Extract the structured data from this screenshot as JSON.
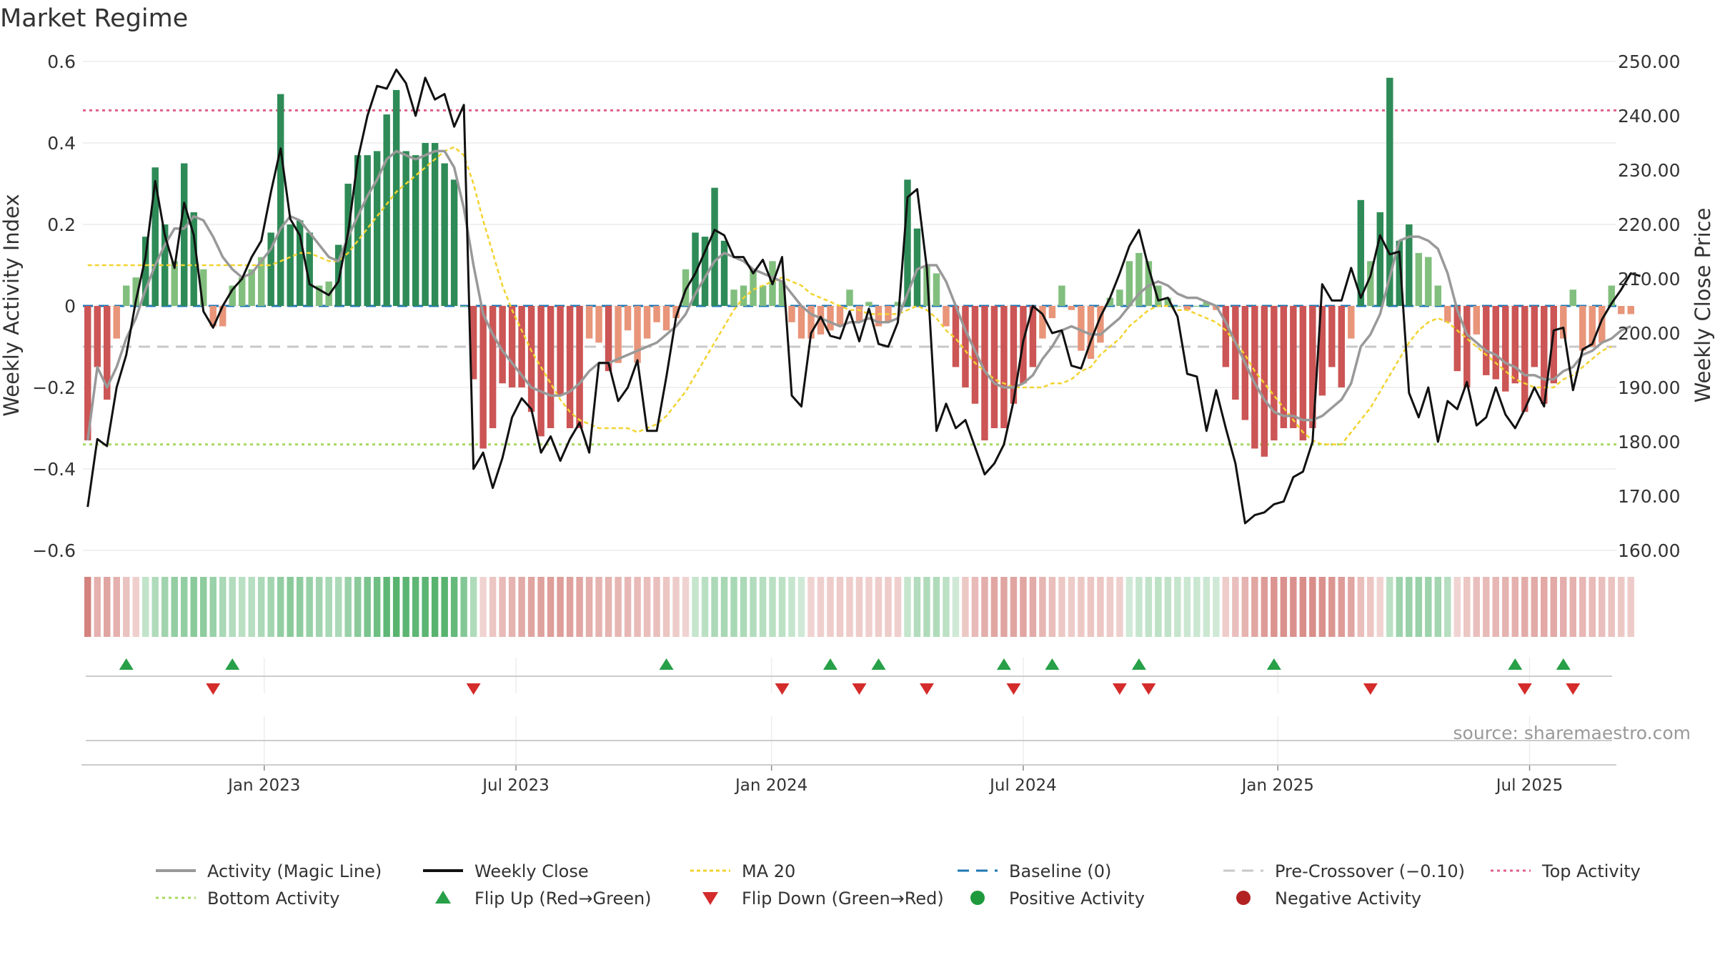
{
  "chart_data": {
    "type": "bar",
    "title": "Market Regime",
    "ylabel_left": "Weekly Activity Index",
    "ylabel_right": "Weekly Close Price",
    "ylim_left": [
      -0.6,
      0.6
    ],
    "ylim_right": [
      160,
      250
    ],
    "y_ticks_left": [
      -0.6,
      -0.4,
      -0.2,
      0,
      0.2,
      0.4,
      0.6
    ],
    "y_tick_labels_left": [
      "−0.6",
      "−0.4",
      "−0.2",
      "0",
      "0.2",
      "0.4",
      "0.6"
    ],
    "y_ticks_right": [
      160,
      170,
      180,
      190,
      200,
      210,
      220,
      230,
      240,
      250
    ],
    "y_tick_labels_right": [
      "160.00",
      "170.00",
      "180.00",
      "190.00",
      "200.00",
      "210.00",
      "220.00",
      "230.00",
      "240.00",
      "250.00"
    ],
    "x_ticks": [
      18.3,
      44.4,
      70.9,
      97.0,
      123.4,
      149.5
    ],
    "x_tick_labels": [
      "Jan 2023",
      "Jul 2023",
      "Jan 2024",
      "Jul 2024",
      "Jan 2025",
      "Jul 2025"
    ],
    "weeks": 159,
    "activity": [
      -0.33,
      -0.15,
      -0.23,
      -0.08,
      0.05,
      0.07,
      0.17,
      0.34,
      0.2,
      0.11,
      0.35,
      0.23,
      0.09,
      -0.05,
      -0.05,
      0.05,
      0.07,
      0.09,
      0.12,
      0.18,
      0.52,
      0.2,
      0.21,
      0.18,
      0.05,
      0.06,
      0.15,
      0.3,
      0.37,
      0.37,
      0.38,
      0.47,
      0.53,
      0.38,
      0.37,
      0.4,
      0.4,
      0.35,
      0.31,
      0.0,
      -0.18,
      -0.35,
      -0.3,
      -0.19,
      -0.2,
      -0.2,
      -0.26,
      -0.32,
      -0.3,
      -0.22,
      -0.3,
      -0.3,
      -0.08,
      -0.09,
      -0.16,
      -0.14,
      -0.06,
      -0.14,
      -0.08,
      -0.04,
      -0.06,
      -0.03,
      0.09,
      0.18,
      0.17,
      0.29,
      0.16,
      0.04,
      0.05,
      0.09,
      0.05,
      0.11,
      0.06,
      -0.04,
      -0.08,
      -0.08,
      -0.07,
      -0.06,
      -0.05,
      0.04,
      -0.04,
      0.01,
      -0.05,
      -0.04,
      0.01,
      0.31,
      0.19,
      0.1,
      0.08,
      -0.05,
      -0.15,
      -0.2,
      -0.24,
      -0.33,
      -0.3,
      -0.3,
      -0.24,
      -0.19,
      -0.15,
      -0.08,
      -0.03,
      0.05,
      -0.01,
      -0.11,
      -0.13,
      -0.09,
      0.02,
      0.04,
      0.11,
      0.13,
      0.11,
      0.05,
      0.02,
      0.0,
      -0.01,
      0.0,
      0.01,
      -0.01,
      -0.15,
      -0.23,
      -0.28,
      -0.35,
      -0.37,
      -0.33,
      -0.3,
      -0.3,
      -0.33,
      -0.3,
      -0.22,
      -0.15,
      -0.2,
      -0.08,
      0.26,
      0.11,
      0.23,
      0.56,
      0.16,
      0.2,
      0.13,
      0.12,
      0.05,
      -0.04,
      -0.16,
      -0.2,
      -0.07,
      -0.17,
      -0.18,
      -0.21,
      -0.19,
      -0.26,
      -0.15,
      -0.24,
      -0.19,
      -0.08,
      0.04,
      -0.11,
      -0.1,
      -0.09,
      0.05,
      -0.02,
      -0.02
    ],
    "activity_magic_line": [
      -0.33,
      -0.15,
      -0.2,
      -0.15,
      -0.08,
      -0.03,
      0.04,
      0.1,
      0.15,
      0.19,
      0.19,
      0.22,
      0.21,
      0.17,
      0.12,
      0.09,
      0.07,
      0.08,
      0.11,
      0.14,
      0.19,
      0.22,
      0.21,
      0.18,
      0.15,
      0.12,
      0.11,
      0.17,
      0.22,
      0.27,
      0.31,
      0.36,
      0.38,
      0.37,
      0.36,
      0.37,
      0.38,
      0.38,
      0.34,
      0.24,
      0.1,
      -0.02,
      -0.07,
      -0.11,
      -0.14,
      -0.17,
      -0.2,
      -0.21,
      -0.22,
      -0.22,
      -0.21,
      -0.19,
      -0.16,
      -0.14,
      -0.14,
      -0.13,
      -0.12,
      -0.11,
      -0.1,
      -0.09,
      -0.07,
      -0.05,
      -0.02,
      0.03,
      0.07,
      0.11,
      0.13,
      0.12,
      0.11,
      0.09,
      0.08,
      0.07,
      0.06,
      0.03,
      0.0,
      -0.02,
      -0.03,
      -0.04,
      -0.05,
      -0.04,
      -0.04,
      -0.03,
      -0.04,
      -0.04,
      -0.03,
      0.03,
      0.09,
      0.1,
      0.1,
      0.06,
      0.0,
      -0.06,
      -0.11,
      -0.16,
      -0.19,
      -0.2,
      -0.2,
      -0.19,
      -0.17,
      -0.13,
      -0.1,
      -0.06,
      -0.05,
      -0.06,
      -0.07,
      -0.07,
      -0.05,
      -0.03,
      0.0,
      0.03,
      0.05,
      0.06,
      0.05,
      0.03,
      0.02,
      0.02,
      0.01,
      0.0,
      -0.04,
      -0.09,
      -0.14,
      -0.19,
      -0.23,
      -0.26,
      -0.27,
      -0.27,
      -0.28,
      -0.28,
      -0.27,
      -0.25,
      -0.23,
      -0.19,
      -0.1,
      -0.07,
      -0.02,
      0.07,
      0.16,
      0.17,
      0.17,
      0.16,
      0.14,
      0.08,
      -0.01,
      -0.07,
      -0.09,
      -0.11,
      -0.12,
      -0.14,
      -0.15,
      -0.17,
      -0.17,
      -0.18,
      -0.18,
      -0.16,
      -0.15,
      -0.12,
      -0.11,
      -0.09,
      -0.08,
      -0.06,
      -0.05
    ],
    "weekly_close": [
      168.0,
      180.5,
      179.2,
      190.0,
      196.0,
      206.0,
      214.0,
      228.0,
      218.0,
      212.0,
      224.0,
      218.0,
      204.0,
      201.0,
      205.0,
      208.0,
      210.0,
      214.0,
      217.0,
      226.0,
      234.0,
      221.0,
      218.0,
      209.0,
      208.0,
      207.0,
      209.5,
      218.5,
      232.0,
      240.0,
      245.5,
      245.0,
      248.5,
      246.0,
      240.0,
      247.0,
      243.0,
      244.0,
      238.0,
      242.0,
      175.0,
      178.0,
      171.5,
      177.0,
      184.5,
      188.0,
      186.0,
      178.0,
      181.0,
      176.5,
      180.5,
      183.5,
      178.0,
      194.5,
      194.5,
      187.5,
      190.0,
      195.0,
      182.0,
      182.0,
      192.0,
      203.0,
      208.0,
      211.0,
      215.0,
      219.0,
      218.0,
      214.0,
      214.0,
      211.0,
      213.5,
      209.0,
      214.0,
      188.5,
      186.5,
      200.0,
      203.0,
      199.5,
      199.0,
      204.0,
      198.5,
      204.5,
      198.0,
      197.5,
      202.0,
      225.0,
      226.5,
      212.0,
      182.0,
      187.0,
      182.5,
      184.0,
      179.0,
      174.0,
      176.0,
      179.5,
      187.5,
      198.5,
      205.0,
      203.5,
      200.0,
      200.5,
      194.0,
      193.5,
      198.5,
      203.0,
      206.5,
      211.0,
      216.0,
      219.0,
      212.0,
      206.0,
      206.5,
      203.0,
      192.5,
      192.0,
      182.0,
      189.5,
      182.5,
      176.0,
      165.0,
      166.5,
      167.0,
      168.5,
      169.0,
      173.5,
      174.5,
      180.0,
      209.0,
      206.0,
      206.0,
      212.0,
      206.5,
      210.5,
      218.0,
      214.5,
      215.0,
      189.0,
      184.5,
      190.0,
      180.0,
      187.5,
      186.0,
      191.0,
      183.0,
      184.5,
      190.0,
      185.0,
      182.5,
      186.0,
      190.0,
      186.5,
      200.5,
      201.0,
      189.5,
      197.0,
      198.0,
      202.5,
      205.5,
      208.0,
      211.0,
      210.5
    ],
    "ma20": [
      0.1,
      0.1,
      0.1,
      0.1,
      0.1,
      0.1,
      0.1,
      0.1,
      0.1,
      0.1,
      0.1,
      0.1,
      0.1,
      0.1,
      0.1,
      0.1,
      0.1,
      0.1,
      0.1,
      0.1,
      0.11,
      0.12,
      0.13,
      0.13,
      0.12,
      0.11,
      0.11,
      0.13,
      0.16,
      0.19,
      0.22,
      0.25,
      0.28,
      0.3,
      0.32,
      0.34,
      0.36,
      0.38,
      0.39,
      0.37,
      0.3,
      0.21,
      0.13,
      0.05,
      -0.01,
      -0.06,
      -0.11,
      -0.15,
      -0.19,
      -0.23,
      -0.26,
      -0.28,
      -0.29,
      -0.3,
      -0.3,
      -0.3,
      -0.3,
      -0.31,
      -0.3,
      -0.29,
      -0.27,
      -0.24,
      -0.21,
      -0.17,
      -0.13,
      -0.09,
      -0.05,
      -0.01,
      0.02,
      0.04,
      0.05,
      0.06,
      0.07,
      0.06,
      0.05,
      0.03,
      0.02,
      0.01,
      0.0,
      -0.01,
      -0.01,
      -0.02,
      -0.02,
      -0.02,
      -0.02,
      -0.01,
      0.0,
      -0.01,
      -0.03,
      -0.06,
      -0.08,
      -0.11,
      -0.14,
      -0.16,
      -0.18,
      -0.19,
      -0.2,
      -0.2,
      -0.2,
      -0.2,
      -0.19,
      -0.19,
      -0.18,
      -0.16,
      -0.15,
      -0.12,
      -0.1,
      -0.08,
      -0.05,
      -0.03,
      -0.01,
      0.0,
      0.0,
      -0.01,
      -0.01,
      -0.02,
      -0.03,
      -0.04,
      -0.06,
      -0.09,
      -0.12,
      -0.16,
      -0.19,
      -0.22,
      -0.25,
      -0.28,
      -0.31,
      -0.33,
      -0.34,
      -0.34,
      -0.34,
      -0.31,
      -0.28,
      -0.25,
      -0.21,
      -0.17,
      -0.13,
      -0.09,
      -0.06,
      -0.04,
      -0.03,
      -0.04,
      -0.06,
      -0.08,
      -0.1,
      -0.12,
      -0.14,
      -0.16,
      -0.18,
      -0.19,
      -0.2,
      -0.2,
      -0.2,
      -0.18,
      -0.17,
      -0.15,
      -0.13,
      -0.11,
      -0.1
    ],
    "baseline": 0,
    "pre_crossover": -0.1,
    "top_activity": 0.48,
    "bottom_activity": -0.34,
    "flip_up_weeks": [
      4,
      15,
      60,
      77,
      82,
      95,
      100,
      109,
      123,
      148,
      153
    ],
    "flip_down_weeks": [
      13,
      40,
      72,
      80,
      87,
      96,
      107,
      110,
      133,
      149,
      154
    ],
    "source": "source: sharemaestro.com",
    "legend": [
      "Activity (Magic Line)",
      "Weekly Close",
      "MA 20",
      "Baseline (0)",
      "Pre-Crossover (−0.10)",
      "Top Activity",
      "Bottom Activity",
      "Flip Up (Red→Green)",
      "Flip Down (Green→Red)",
      "Positive Activity",
      "Negative Activity"
    ],
    "legend_position": "bottom"
  },
  "colors": {
    "pos_dark": "#2e8b57",
    "pos_light": "#82bf7e",
    "neg_dark": "#cc5555",
    "neg_light": "#e8957a",
    "magic": "#999999",
    "close": "#111111",
    "ma20": "#f2d330",
    "baseline": "#1f77b4",
    "pre": "#c8c8c8",
    "top": "#e0608a",
    "bottom": "#a8d860",
    "flip_up": "#27a048",
    "flip_down": "#d42b2b",
    "pos_dot": "#1e9a3c",
    "neg_dot": "#b22222",
    "grid": "#ebebeb"
  }
}
